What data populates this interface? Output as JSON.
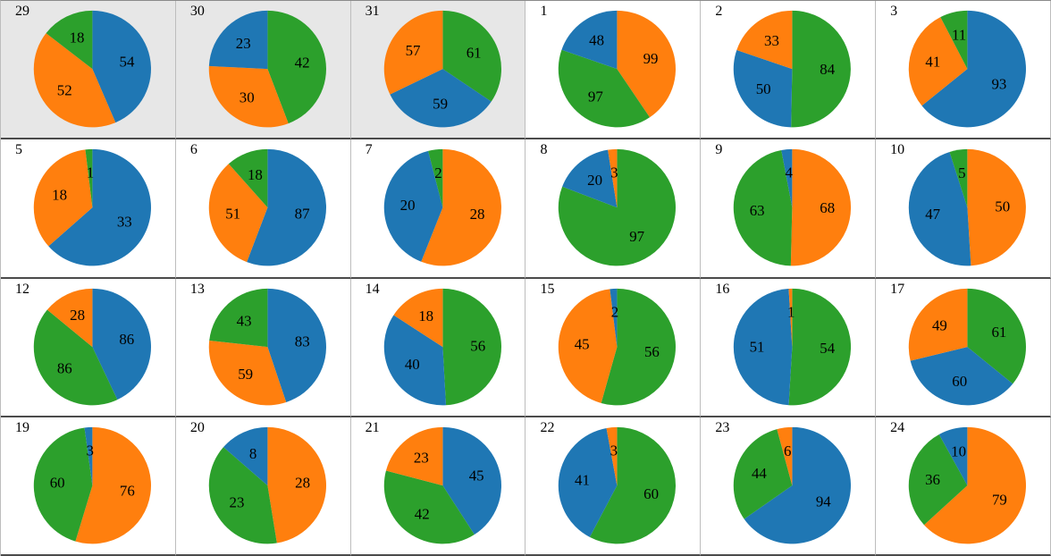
{
  "colors": {
    "blue": "#1f77b4",
    "orange": "#ff7f0e",
    "green": "#2ca02c",
    "shaded_cell_bg": "#e7e7e7",
    "cell_bg": "#ffffff",
    "row_separator": "#4b4b4b",
    "column_separator": "#bdbdbd",
    "label_color": "#000000"
  },
  "layout_hints": {
    "grid_columns": 6,
    "grid_rows": 4,
    "start_angle": "12-oclock",
    "direction": "clockwise",
    "label_distance": 0.6
  },
  "chart_data": [
    {
      "type": "pie",
      "title": "29",
      "shaded": true,
      "slices": [
        {
          "series": "blue",
          "value": 54
        },
        {
          "series": "orange",
          "value": 52
        },
        {
          "series": "green",
          "value": 18
        }
      ]
    },
    {
      "type": "pie",
      "title": "30",
      "shaded": true,
      "slices": [
        {
          "series": "green",
          "value": 42
        },
        {
          "series": "orange",
          "value": 30
        },
        {
          "series": "blue",
          "value": 23
        }
      ]
    },
    {
      "type": "pie",
      "title": "31",
      "shaded": true,
      "slices": [
        {
          "series": "green",
          "value": 61
        },
        {
          "series": "blue",
          "value": 59
        },
        {
          "series": "orange",
          "value": 57
        }
      ]
    },
    {
      "type": "pie",
      "title": "1",
      "shaded": false,
      "slices": [
        {
          "series": "orange",
          "value": 99
        },
        {
          "series": "green",
          "value": 97
        },
        {
          "series": "blue",
          "value": 48
        }
      ]
    },
    {
      "type": "pie",
      "title": "2",
      "shaded": false,
      "slices": [
        {
          "series": "green",
          "value": 84
        },
        {
          "series": "blue",
          "value": 50
        },
        {
          "series": "orange",
          "value": 33
        }
      ]
    },
    {
      "type": "pie",
      "title": "3",
      "shaded": false,
      "slices": [
        {
          "series": "blue",
          "value": 93
        },
        {
          "series": "orange",
          "value": 41
        },
        {
          "series": "green",
          "value": 11
        }
      ]
    },
    {
      "type": "pie",
      "title": "5",
      "shaded": false,
      "slices": [
        {
          "series": "blue",
          "value": 33
        },
        {
          "series": "orange",
          "value": 18
        },
        {
          "series": "green",
          "value": 1
        }
      ]
    },
    {
      "type": "pie",
      "title": "6",
      "shaded": false,
      "slices": [
        {
          "series": "blue",
          "value": 87
        },
        {
          "series": "orange",
          "value": 51
        },
        {
          "series": "green",
          "value": 18
        }
      ]
    },
    {
      "type": "pie",
      "title": "7",
      "shaded": false,
      "slices": [
        {
          "series": "orange",
          "value": 28
        },
        {
          "series": "blue",
          "value": 20
        },
        {
          "series": "green",
          "value": 2
        }
      ]
    },
    {
      "type": "pie",
      "title": "8",
      "shaded": false,
      "slices": [
        {
          "series": "green",
          "value": 97
        },
        {
          "series": "blue",
          "value": 20
        },
        {
          "series": "orange",
          "value": 3
        }
      ]
    },
    {
      "type": "pie",
      "title": "9",
      "shaded": false,
      "slices": [
        {
          "series": "orange",
          "value": 68
        },
        {
          "series": "green",
          "value": 63
        },
        {
          "series": "blue",
          "value": 4
        }
      ]
    },
    {
      "type": "pie",
      "title": "10",
      "shaded": false,
      "slices": [
        {
          "series": "orange",
          "value": 50
        },
        {
          "series": "blue",
          "value": 47
        },
        {
          "series": "green",
          "value": 5
        }
      ]
    },
    {
      "type": "pie",
      "title": "12",
      "shaded": false,
      "slices": [
        {
          "series": "blue",
          "value": 86
        },
        {
          "series": "green",
          "value": 86
        },
        {
          "series": "orange",
          "value": 28
        }
      ]
    },
    {
      "type": "pie",
      "title": "13",
      "shaded": false,
      "slices": [
        {
          "series": "blue",
          "value": 83
        },
        {
          "series": "orange",
          "value": 59
        },
        {
          "series": "green",
          "value": 43
        }
      ]
    },
    {
      "type": "pie",
      "title": "14",
      "shaded": false,
      "slices": [
        {
          "series": "green",
          "value": 56
        },
        {
          "series": "blue",
          "value": 40
        },
        {
          "series": "orange",
          "value": 18
        }
      ]
    },
    {
      "type": "pie",
      "title": "15",
      "shaded": false,
      "slices": [
        {
          "series": "green",
          "value": 56
        },
        {
          "series": "orange",
          "value": 45
        },
        {
          "series": "blue",
          "value": 2
        }
      ]
    },
    {
      "type": "pie",
      "title": "16",
      "shaded": false,
      "slices": [
        {
          "series": "green",
          "value": 54
        },
        {
          "series": "blue",
          "value": 51
        },
        {
          "series": "orange",
          "value": 1
        }
      ]
    },
    {
      "type": "pie",
      "title": "17",
      "shaded": false,
      "slices": [
        {
          "series": "green",
          "value": 61
        },
        {
          "series": "blue",
          "value": 60
        },
        {
          "series": "orange",
          "value": 49
        }
      ]
    },
    {
      "type": "pie",
      "title": "19",
      "shaded": false,
      "slices": [
        {
          "series": "orange",
          "value": 76
        },
        {
          "series": "green",
          "value": 60
        },
        {
          "series": "blue",
          "value": 3
        }
      ]
    },
    {
      "type": "pie",
      "title": "20",
      "shaded": false,
      "slices": [
        {
          "series": "orange",
          "value": 28
        },
        {
          "series": "green",
          "value": 23
        },
        {
          "series": "blue",
          "value": 8
        }
      ]
    },
    {
      "type": "pie",
      "title": "21",
      "shaded": false,
      "slices": [
        {
          "series": "blue",
          "value": 45
        },
        {
          "series": "green",
          "value": 42
        },
        {
          "series": "orange",
          "value": 23
        }
      ]
    },
    {
      "type": "pie",
      "title": "22",
      "shaded": false,
      "slices": [
        {
          "series": "green",
          "value": 60
        },
        {
          "series": "blue",
          "value": 41
        },
        {
          "series": "orange",
          "value": 3
        }
      ]
    },
    {
      "type": "pie",
      "title": "23",
      "shaded": false,
      "slices": [
        {
          "series": "blue",
          "value": 94
        },
        {
          "series": "green",
          "value": 44
        },
        {
          "series": "orange",
          "value": 6
        }
      ]
    },
    {
      "type": "pie",
      "title": "24",
      "shaded": false,
      "slices": [
        {
          "series": "orange",
          "value": 79
        },
        {
          "series": "green",
          "value": 36
        },
        {
          "series": "blue",
          "value": 10
        }
      ]
    }
  ]
}
